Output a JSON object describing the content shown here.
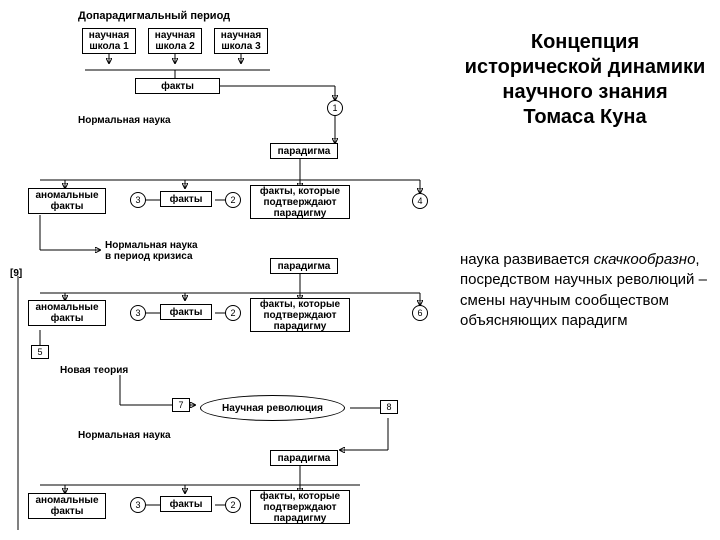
{
  "title_lines": [
    "Концепция",
    "исторической динамики",
    "научного знания",
    "Томаса Куна"
  ],
  "body_html": "наука развивается <i>скачкообразно</i>, посредством научных революций – смены научным сообществом объясняющих парадигм",
  "labels": {
    "pre_paradigm": "Допарадигмальный период",
    "school1": "научная\nшкола 1",
    "school2": "научная\nшкола 2",
    "school3": "научная\nшкола 3",
    "facts": "факты",
    "normal_science": "Нормальная наука",
    "paradigm": "парадигма",
    "anomal_facts": "аномальные\nфакты",
    "facts_confirm": "факты, которые\nподтверждают\nпарадигму",
    "normal_crisis": "Нормальная наука\nв период кризиса",
    "new_theory": "Новая теория",
    "sci_revolution": "Научная революция"
  },
  "nums": {
    "n1": "1",
    "n2": "2",
    "n3": "3",
    "n4": "4",
    "n5": "5",
    "n6": "6",
    "n7": "7",
    "n8": "8",
    "n9": "[9]"
  },
  "colors": {
    "text": "#000000",
    "bg": "#ffffff",
    "line": "#000000"
  }
}
